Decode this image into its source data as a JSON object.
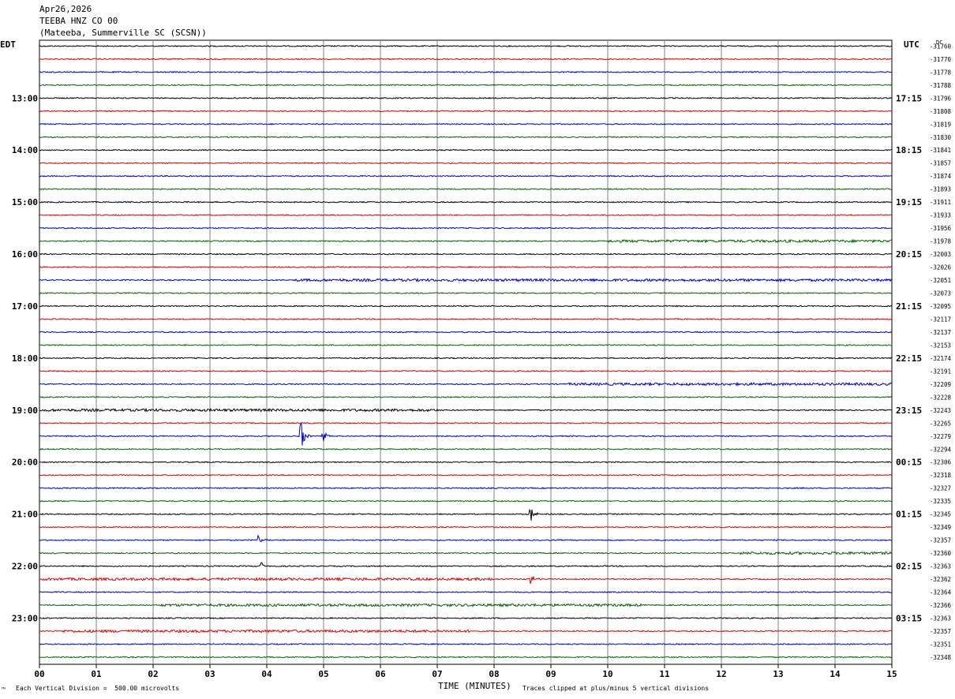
{
  "header": {
    "date": "Apr26,2026",
    "station": "TEEBA HNZ CO 00",
    "location": "(Mateeba, Summerville SC (SCSN))"
  },
  "left_tz": "EDT",
  "right_tz": "UTC",
  "dc_label": "DC",
  "footer": {
    "scale": "Each Vertical Division =  500.00 microvolts",
    "clip": "Traces clipped at plus/minus 5 vertical divisions",
    "mark": "™"
  },
  "colors": {
    "trace": [
      "#000000",
      "#dd0000",
      "#0000cc",
      "#006600"
    ],
    "grid": "#808080"
  },
  "chart_data": {
    "type": "line",
    "title": "TEEBA HNZ CO 00",
    "xlabel": "TIME (MINUTES)",
    "x_ticks": [
      "00",
      "01",
      "02",
      "03",
      "04",
      "05",
      "06",
      "07",
      "08",
      "09",
      "10",
      "11",
      "12",
      "13",
      "14",
      "15"
    ],
    "xlim": [
      0,
      15
    ],
    "left_hour_labels": [
      "13:00",
      "14:00",
      "15:00",
      "16:00",
      "17:00",
      "18:00",
      "19:00",
      "20:00",
      "21:00",
      "22:00",
      "23:00"
    ],
    "right_hour_labels": [
      "17:15",
      "18:15",
      "19:15",
      "20:15",
      "21:15",
      "22:15",
      "23:15",
      "00:15",
      "01:15",
      "02:15",
      "03:15"
    ],
    "dc_offsets": [
      -31760,
      -31770,
      -31778,
      -31788,
      -31796,
      -31808,
      -31819,
      -31830,
      -31841,
      -31857,
      -31874,
      -31893,
      -31911,
      -31933,
      -31956,
      -31978,
      -32003,
      -32026,
      -32051,
      -32073,
      -32095,
      -32117,
      -32137,
      -32153,
      -32174,
      -32191,
      -32209,
      -32228,
      -32243,
      -32265,
      -32279,
      -32294,
      -32306,
      -32318,
      -32327,
      -32335,
      -32345,
      -32349,
      -32357,
      -32360,
      -32363,
      -32362,
      -32364,
      -32366,
      -32363,
      -32357,
      -32351,
      -32348
    ],
    "events": [
      {
        "row": 30,
        "minute": 4.6,
        "amplitude": 1.0
      },
      {
        "row": 30,
        "minute": 5.0,
        "amplitude": 0.3
      },
      {
        "row": 36,
        "minute": 8.65,
        "amplitude": 0.4
      },
      {
        "row": 40,
        "minute": 3.9,
        "amplitude": 0.25
      },
      {
        "row": 38,
        "minute": 3.85,
        "amplitude": 0.3
      },
      {
        "row": 41,
        "minute": 8.65,
        "amplitude": 0.35
      }
    ],
    "noisy_segments": [
      {
        "row": 28,
        "from": 0,
        "to": 7.0
      },
      {
        "row": 41,
        "from": 0,
        "to": 8.0
      },
      {
        "row": 43,
        "from": 2.1,
        "to": 10.6
      },
      {
        "row": 45,
        "from": 0.4,
        "to": 7.6
      },
      {
        "row": 18,
        "from": 4.5,
        "to": 15
      },
      {
        "row": 26,
        "from": 9.3,
        "to": 15
      },
      {
        "row": 39,
        "from": 12.3,
        "to": 15
      },
      {
        "row": 15,
        "from": 10,
        "to": 15
      }
    ]
  }
}
